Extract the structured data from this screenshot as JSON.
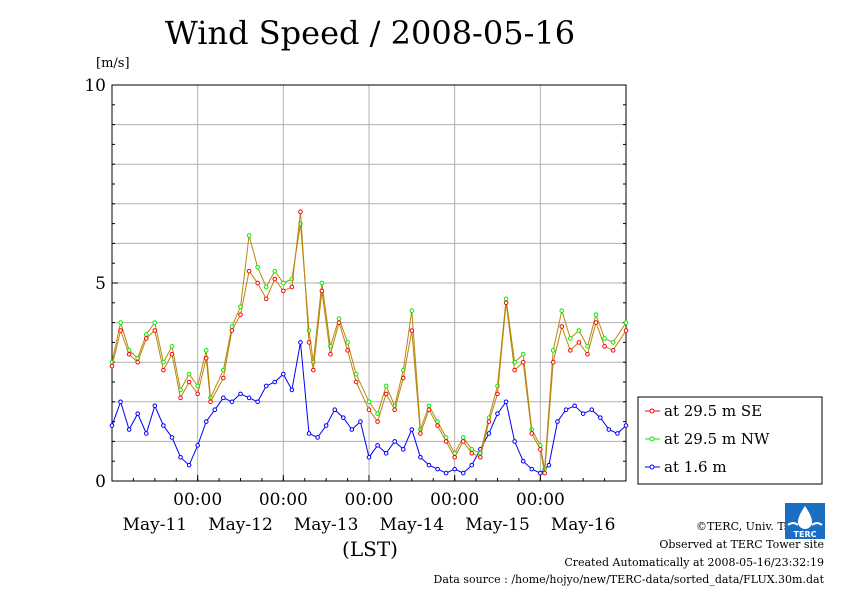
{
  "title": "Wind Speed / 2008-05-16",
  "footer": {
    "copyright": "©TERC, Univ. Tsukuba",
    "observed": "Observed at TERC Tower site",
    "created": "Created Automatically at 2008-05-16/23:32:19",
    "source": "Data source : /home/hojyo/new/TERC-data/sorted_data/FLUX.30m.dat"
  },
  "logo_text": "TERC",
  "chart_data": {
    "type": "line",
    "title": "Wind Speed / 2008-05-16",
    "xlabel": "(LST)",
    "ylabel": "[m/s]",
    "ylim": [
      0,
      10
    ],
    "yticks": [
      {
        "value": 0,
        "label": "0"
      },
      {
        "value": 5,
        "label": "5"
      },
      {
        "value": 10,
        "label": "10"
      }
    ],
    "xlim": [
      0,
      6
    ],
    "x_unit": "days from 2008-05-11 00:00 LST",
    "xticks_time": [
      {
        "x": 1,
        "label": "00:00"
      },
      {
        "x": 2,
        "label": "00:00"
      },
      {
        "x": 3,
        "label": "00:00"
      },
      {
        "x": 4,
        "label": "00:00"
      },
      {
        "x": 5,
        "label": "00:00"
      }
    ],
    "xticks_date": [
      {
        "x": 0.5,
        "label": "May-11"
      },
      {
        "x": 1.5,
        "label": "May-12"
      },
      {
        "x": 2.5,
        "label": "May-13"
      },
      {
        "x": 3.5,
        "label": "May-14"
      },
      {
        "x": 4.5,
        "label": "May-15"
      },
      {
        "x": 5.5,
        "label": "May-16"
      }
    ],
    "grid": true,
    "legend_position": "right",
    "series": [
      {
        "name": "at 29.5 m SE",
        "color": "#ff0000",
        "line_color": "#b8860b",
        "points": [
          [
            0.0,
            2.9
          ],
          [
            0.1,
            3.8
          ],
          [
            0.2,
            3.2
          ],
          [
            0.3,
            3.0
          ],
          [
            0.4,
            3.6
          ],
          [
            0.5,
            3.8
          ],
          [
            0.6,
            2.8
          ],
          [
            0.7,
            3.2
          ],
          [
            0.8,
            2.1
          ],
          [
            0.9,
            2.5
          ],
          [
            1.0,
            2.2
          ],
          [
            1.1,
            3.1
          ],
          [
            1.15,
            2.0
          ],
          [
            1.3,
            2.6
          ],
          [
            1.4,
            3.8
          ],
          [
            1.5,
            4.2
          ],
          [
            1.6,
            5.3
          ],
          [
            1.7,
            5.0
          ],
          [
            1.8,
            4.6
          ],
          [
            1.9,
            5.1
          ],
          [
            2.0,
            4.8
          ],
          [
            2.1,
            4.9
          ],
          [
            2.2,
            6.8
          ],
          [
            2.3,
            3.5
          ],
          [
            2.35,
            2.8
          ],
          [
            2.45,
            4.8
          ],
          [
            2.55,
            3.2
          ],
          [
            2.65,
            4.0
          ],
          [
            2.75,
            3.3
          ],
          [
            2.85,
            2.5
          ],
          [
            3.0,
            1.8
          ],
          [
            3.1,
            1.5
          ],
          [
            3.2,
            2.2
          ],
          [
            3.3,
            1.8
          ],
          [
            3.4,
            2.6
          ],
          [
            3.5,
            3.8
          ],
          [
            3.6,
            1.2
          ],
          [
            3.7,
            1.8
          ],
          [
            3.8,
            1.4
          ],
          [
            3.9,
            1.0
          ],
          [
            4.0,
            0.6
          ],
          [
            4.1,
            1.0
          ],
          [
            4.2,
            0.7
          ],
          [
            4.3,
            0.6
          ],
          [
            4.4,
            1.5
          ],
          [
            4.5,
            2.2
          ],
          [
            4.6,
            4.5
          ],
          [
            4.7,
            2.8
          ],
          [
            4.8,
            3.0
          ],
          [
            4.9,
            1.2
          ],
          [
            5.0,
            0.8
          ],
          [
            5.05,
            0.2
          ],
          [
            5.15,
            3.0
          ],
          [
            5.25,
            3.9
          ],
          [
            5.35,
            3.3
          ],
          [
            5.45,
            3.5
          ],
          [
            5.55,
            3.2
          ],
          [
            5.65,
            4.0
          ],
          [
            5.75,
            3.4
          ],
          [
            5.85,
            3.3
          ],
          [
            6.0,
            3.8
          ]
        ]
      },
      {
        "name": "at 29.5 m NW",
        "color": "#00ee00",
        "line_color": "#b8860b",
        "points": [
          [
            0.0,
            3.0
          ],
          [
            0.1,
            4.0
          ],
          [
            0.2,
            3.3
          ],
          [
            0.3,
            3.1
          ],
          [
            0.4,
            3.7
          ],
          [
            0.5,
            4.0
          ],
          [
            0.6,
            3.0
          ],
          [
            0.7,
            3.4
          ],
          [
            0.8,
            2.3
          ],
          [
            0.9,
            2.7
          ],
          [
            1.0,
            2.4
          ],
          [
            1.1,
            3.3
          ],
          [
            1.15,
            2.1
          ],
          [
            1.3,
            2.8
          ],
          [
            1.4,
            3.9
          ],
          [
            1.5,
            4.4
          ],
          [
            1.6,
            6.2
          ],
          [
            1.7,
            5.4
          ],
          [
            1.8,
            4.9
          ],
          [
            1.9,
            5.3
          ],
          [
            2.0,
            5.0
          ],
          [
            2.1,
            5.1
          ],
          [
            2.2,
            6.5
          ],
          [
            2.3,
            3.8
          ],
          [
            2.35,
            3.0
          ],
          [
            2.45,
            5.0
          ],
          [
            2.55,
            3.4
          ],
          [
            2.65,
            4.1
          ],
          [
            2.75,
            3.5
          ],
          [
            2.85,
            2.7
          ],
          [
            3.0,
            2.0
          ],
          [
            3.1,
            1.7
          ],
          [
            3.2,
            2.4
          ],
          [
            3.3,
            1.9
          ],
          [
            3.4,
            2.8
          ],
          [
            3.5,
            4.3
          ],
          [
            3.6,
            1.3
          ],
          [
            3.7,
            1.9
          ],
          [
            3.8,
            1.5
          ],
          [
            3.9,
            1.1
          ],
          [
            4.0,
            0.7
          ],
          [
            4.1,
            1.1
          ],
          [
            4.2,
            0.8
          ],
          [
            4.3,
            0.7
          ],
          [
            4.4,
            1.6
          ],
          [
            4.5,
            2.4
          ],
          [
            4.6,
            4.6
          ],
          [
            4.7,
            3.0
          ],
          [
            4.8,
            3.2
          ],
          [
            4.9,
            1.3
          ],
          [
            5.0,
            0.9
          ],
          [
            5.05,
            0.3
          ],
          [
            5.15,
            3.3
          ],
          [
            5.25,
            4.3
          ],
          [
            5.35,
            3.6
          ],
          [
            5.45,
            3.8
          ],
          [
            5.55,
            3.4
          ],
          [
            5.65,
            4.2
          ],
          [
            5.75,
            3.6
          ],
          [
            5.85,
            3.5
          ],
          [
            6.0,
            4.0
          ]
        ]
      },
      {
        "name": "at 1.6 m",
        "color": "#0000ff",
        "line_color": "#0000ff",
        "points": [
          [
            0.0,
            1.4
          ],
          [
            0.1,
            2.0
          ],
          [
            0.2,
            1.3
          ],
          [
            0.3,
            1.7
          ],
          [
            0.4,
            1.2
          ],
          [
            0.5,
            1.9
          ],
          [
            0.6,
            1.4
          ],
          [
            0.7,
            1.1
          ],
          [
            0.8,
            0.6
          ],
          [
            0.9,
            0.4
          ],
          [
            1.0,
            0.9
          ],
          [
            1.1,
            1.5
          ],
          [
            1.2,
            1.8
          ],
          [
            1.3,
            2.1
          ],
          [
            1.4,
            2.0
          ],
          [
            1.5,
            2.2
          ],
          [
            1.6,
            2.1
          ],
          [
            1.7,
            2.0
          ],
          [
            1.8,
            2.4
          ],
          [
            1.9,
            2.5
          ],
          [
            2.0,
            2.7
          ],
          [
            2.1,
            2.3
          ],
          [
            2.2,
            3.5
          ],
          [
            2.3,
            1.2
          ],
          [
            2.4,
            1.1
          ],
          [
            2.5,
            1.4
          ],
          [
            2.6,
            1.8
          ],
          [
            2.7,
            1.6
          ],
          [
            2.8,
            1.3
          ],
          [
            2.9,
            1.5
          ],
          [
            3.0,
            0.6
          ],
          [
            3.1,
            0.9
          ],
          [
            3.2,
            0.7
          ],
          [
            3.3,
            1.0
          ],
          [
            3.4,
            0.8
          ],
          [
            3.5,
            1.3
          ],
          [
            3.6,
            0.6
          ],
          [
            3.7,
            0.4
          ],
          [
            3.8,
            0.3
          ],
          [
            3.9,
            0.2
          ],
          [
            4.0,
            0.3
          ],
          [
            4.1,
            0.2
          ],
          [
            4.2,
            0.4
          ],
          [
            4.3,
            0.8
          ],
          [
            4.4,
            1.2
          ],
          [
            4.5,
            1.7
          ],
          [
            4.6,
            2.0
          ],
          [
            4.7,
            1.0
          ],
          [
            4.8,
            0.5
          ],
          [
            4.9,
            0.3
          ],
          [
            5.0,
            0.2
          ],
          [
            5.1,
            0.4
          ],
          [
            5.2,
            1.5
          ],
          [
            5.3,
            1.8
          ],
          [
            5.4,
            1.9
          ],
          [
            5.5,
            1.7
          ],
          [
            5.6,
            1.8
          ],
          [
            5.7,
            1.6
          ],
          [
            5.8,
            1.3
          ],
          [
            5.9,
            1.2
          ],
          [
            6.0,
            1.4
          ]
        ]
      }
    ]
  }
}
